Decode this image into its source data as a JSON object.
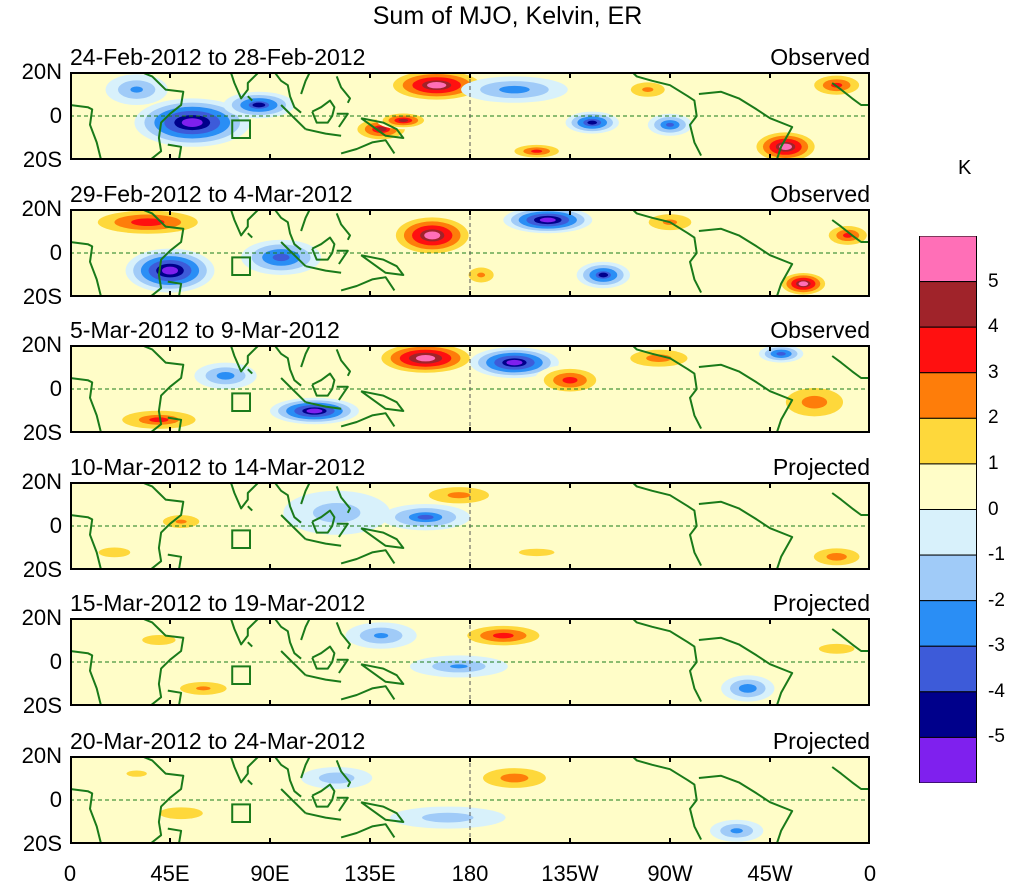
{
  "title": "Sum of MJO, Kelvin, ER",
  "units": "K",
  "colors": {
    "coast": "#1a7a1a",
    "frame": "#000000",
    "levels": [
      "#7f20ee",
      "#00008b",
      "#3d5bd9",
      "#2a8ef5",
      "#a0cbf8",
      "#d8f1fb",
      "#fffdc8",
      "#fed83b",
      "#fe7d0a",
      "#ff1010",
      "#a0232a",
      "#ff6fb7"
    ]
  },
  "chart_data": {
    "type": "heatmap",
    "xlim": [
      "0",
      "0"
    ],
    "ylim": [
      "20S",
      "20N"
    ],
    "x_ticks": [
      "0",
      "45E",
      "90E",
      "135E",
      "180",
      "135W",
      "90W",
      "45W",
      "0"
    ],
    "y_ticks": [
      "20N",
      "0",
      "20S"
    ],
    "legend": {
      "units": "K",
      "tick_labels": [
        "5",
        "4",
        "3",
        "2",
        "1",
        "0",
        "-1",
        "-2",
        "-3",
        "-4",
        "-5"
      ],
      "bins_top_to_bottom": [
        ">5",
        "4 to 5",
        "3 to 4",
        "2 to 3",
        "1 to 2",
        "0 to 1",
        "-1 to 0",
        "-2 to -1",
        "-3 to -2",
        "-4 to -3",
        "-5 to -4",
        "<-5"
      ]
    },
    "panels": [
      {
        "date_range": "24-Feb-2012 to 28-Feb-2012",
        "status": "Observed",
        "anomalies": [
          {
            "lon": 55,
            "lat": -3,
            "value": -5.8,
            "rx": 26,
            "ry": 11
          },
          {
            "lon": 85,
            "lat": 5,
            "value": -4.2,
            "rx": 16,
            "ry": 6
          },
          {
            "lon": 30,
            "lat": 12,
            "value": -2.5,
            "rx": 14,
            "ry": 7
          },
          {
            "lon": 140,
            "lat": -6,
            "value": 4.2,
            "rx": 14,
            "ry": 6
          },
          {
            "lon": 165,
            "lat": 14,
            "value": 5.5,
            "rx": 24,
            "ry": 8
          },
          {
            "lon": 150,
            "lat": -2,
            "value": 4.5,
            "rx": 12,
            "ry": 4
          },
          {
            "lon": 200,
            "lat": 12,
            "value": -2.8,
            "rx": 24,
            "ry": 6
          },
          {
            "lon": 235,
            "lat": -3,
            "value": -4.5,
            "rx": 12,
            "ry": 5
          },
          {
            "lon": 260,
            "lat": 12,
            "value": 2.2,
            "rx": 14,
            "ry": 6
          },
          {
            "lon": 270,
            "lat": -4,
            "value": -3.5,
            "rx": 10,
            "ry": 5
          },
          {
            "lon": 322,
            "lat": -14,
            "value": 5.5,
            "rx": 16,
            "ry": 8
          },
          {
            "lon": 345,
            "lat": 14,
            "value": 3.6,
            "rx": 14,
            "ry": 6
          },
          {
            "lon": 210,
            "lat": -16,
            "value": 3.5,
            "rx": 14,
            "ry": 4
          }
        ]
      },
      {
        "date_range": "29-Feb-2012 to 4-Mar-2012",
        "status": "Observed",
        "anomalies": [
          {
            "lon": 45,
            "lat": -8,
            "value": -5.8,
            "rx": 20,
            "ry": 10
          },
          {
            "lon": 35,
            "lat": 14,
            "value": 4.0,
            "rx": 30,
            "ry": 7
          },
          {
            "lon": 95,
            "lat": -2,
            "value": -3.8,
            "rx": 18,
            "ry": 8
          },
          {
            "lon": 163,
            "lat": 8,
            "value": 5.5,
            "rx": 20,
            "ry": 10
          },
          {
            "lon": 215,
            "lat": 15,
            "value": -5.8,
            "rx": 20,
            "ry": 6
          },
          {
            "lon": 240,
            "lat": -10,
            "value": -4.2,
            "rx": 12,
            "ry": 6
          },
          {
            "lon": 270,
            "lat": 14,
            "value": 2.5,
            "rx": 16,
            "ry": 6
          },
          {
            "lon": 330,
            "lat": -14,
            "value": 5.5,
            "rx": 12,
            "ry": 6
          },
          {
            "lon": 350,
            "lat": 8,
            "value": 3.5,
            "rx": 12,
            "ry": 6
          },
          {
            "lon": 185,
            "lat": -10,
            "value": 2.3,
            "rx": 10,
            "ry": 6
          }
        ]
      },
      {
        "date_range": "5-Mar-2012 to 9-Mar-2012",
        "status": "Observed",
        "anomalies": [
          {
            "lon": 160,
            "lat": 14,
            "value": 5.8,
            "rx": 24,
            "ry": 8
          },
          {
            "lon": 200,
            "lat": 12,
            "value": -5.5,
            "rx": 20,
            "ry": 7
          },
          {
            "lon": 110,
            "lat": -10,
            "value": -5.5,
            "rx": 20,
            "ry": 6
          },
          {
            "lon": 225,
            "lat": 4,
            "value": 3.8,
            "rx": 16,
            "ry": 7
          },
          {
            "lon": 265,
            "lat": 14,
            "value": 2.8,
            "rx": 20,
            "ry": 6
          },
          {
            "lon": 40,
            "lat": -14,
            "value": 3.2,
            "rx": 24,
            "ry": 6
          },
          {
            "lon": 70,
            "lat": 6,
            "value": -2.8,
            "rx": 14,
            "ry": 6
          },
          {
            "lon": 335,
            "lat": -6,
            "value": 2.8,
            "rx": 20,
            "ry": 10
          },
          {
            "lon": 320,
            "lat": 16,
            "value": -3.8,
            "rx": 10,
            "ry": 4
          }
        ]
      },
      {
        "date_range": "10-Mar-2012 to 14-Mar-2012",
        "status": "Projected",
        "anomalies": [
          {
            "lon": 50,
            "lat": 2,
            "value": 2.4,
            "rx": 14,
            "ry": 5
          },
          {
            "lon": 20,
            "lat": -12,
            "value": 1.8,
            "rx": 16,
            "ry": 5
          },
          {
            "lon": 175,
            "lat": 14,
            "value": 2.6,
            "rx": 22,
            "ry": 6
          },
          {
            "lon": 160,
            "lat": 4,
            "value": -3.2,
            "rx": 20,
            "ry": 6
          },
          {
            "lon": 120,
            "lat": 6,
            "value": -1.8,
            "rx": 24,
            "ry": 10
          },
          {
            "lon": 345,
            "lat": -14,
            "value": 2.8,
            "rx": 16,
            "ry": 6
          },
          {
            "lon": 210,
            "lat": -12,
            "value": 1.5,
            "rx": 24,
            "ry": 5
          }
        ]
      },
      {
        "date_range": "15-Mar-2012 to 19-Mar-2012",
        "status": "Projected",
        "anomalies": [
          {
            "lon": 195,
            "lat": 12,
            "value": 3.8,
            "rx": 22,
            "ry": 6
          },
          {
            "lon": 140,
            "lat": 12,
            "value": -2.5,
            "rx": 16,
            "ry": 6
          },
          {
            "lon": 175,
            "lat": -2,
            "value": -2.2,
            "rx": 22,
            "ry": 5
          },
          {
            "lon": 60,
            "lat": -12,
            "value": 2.4,
            "rx": 18,
            "ry": 5
          },
          {
            "lon": 40,
            "lat": 10,
            "value": 1.6,
            "rx": 20,
            "ry": 6
          },
          {
            "lon": 305,
            "lat": -12,
            "value": -3.0,
            "rx": 12,
            "ry": 6
          },
          {
            "lon": 345,
            "lat": 6,
            "value": 1.8,
            "rx": 18,
            "ry": 5
          }
        ]
      },
      {
        "date_range": "20-Mar-2012 to 24-Mar-2012",
        "status": "Projected",
        "anomalies": [
          {
            "lon": 200,
            "lat": 10,
            "value": 2.8,
            "rx": 22,
            "ry": 7
          },
          {
            "lon": 120,
            "lat": 10,
            "value": -2.0,
            "rx": 16,
            "ry": 5
          },
          {
            "lon": 170,
            "lat": -8,
            "value": -1.8,
            "rx": 26,
            "ry": 5
          },
          {
            "lon": 50,
            "lat": -6,
            "value": 1.8,
            "rx": 22,
            "ry": 6
          },
          {
            "lon": 300,
            "lat": -14,
            "value": -2.6,
            "rx": 12,
            "ry": 5
          },
          {
            "lon": 30,
            "lat": 12,
            "value": 1.4,
            "rx": 16,
            "ry": 5
          }
        ]
      }
    ]
  }
}
